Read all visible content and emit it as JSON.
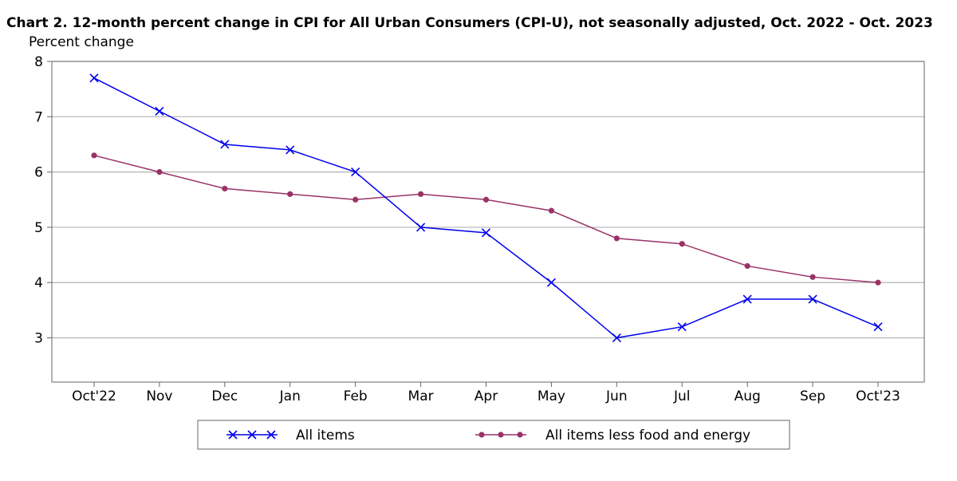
{
  "chart_data": {
    "type": "line",
    "title": "Chart 2. 12-month percent change in CPI for All Urban Consumers (CPI-U), not seasonally adjusted, Oct. 2022 - Oct. 2023",
    "ylabel": "Percent change",
    "xlabel": "",
    "categories": [
      "Oct'22",
      "Nov",
      "Dec",
      "Jan",
      "Feb",
      "Mar",
      "Apr",
      "May",
      "Jun",
      "Jul",
      "Aug",
      "Sep",
      "Oct'23"
    ],
    "y_ticks": [
      3,
      4,
      5,
      6,
      7,
      8
    ],
    "ylim": [
      2.2,
      8
    ],
    "grid": true,
    "legend_position": "bottom",
    "series": [
      {
        "name": "All items",
        "marker": "x",
        "color": "#0000ee",
        "values": [
          7.7,
          7.1,
          6.5,
          6.4,
          6.0,
          5.0,
          4.9,
          4.0,
          3.0,
          3.2,
          3.7,
          3.7,
          3.2
        ]
      },
      {
        "name": "All items less food and energy",
        "marker": "circle",
        "color": "#993366",
        "values": [
          6.3,
          6.0,
          5.7,
          5.6,
          5.5,
          5.6,
          5.5,
          5.3,
          4.8,
          4.7,
          4.3,
          4.1,
          4.0
        ]
      }
    ]
  }
}
